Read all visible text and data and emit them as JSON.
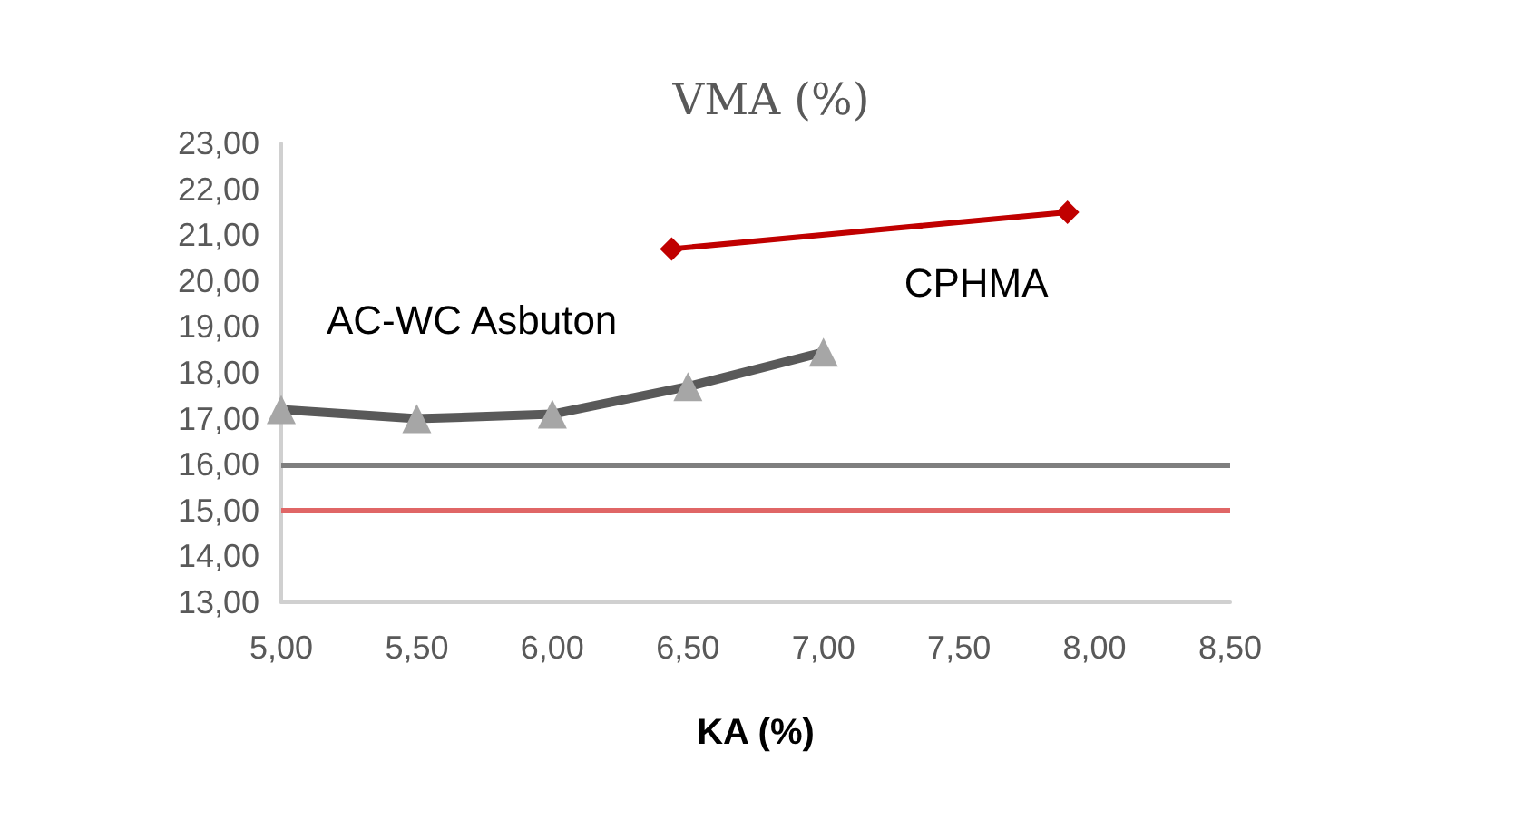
{
  "chart_data": {
    "type": "line",
    "title": "VMA (%)",
    "xlabel": "KA (%)",
    "series": [
      {
        "name": "AC-WC Asbuton",
        "color": "#595959",
        "marker": "triangle",
        "x": [
          5.0,
          5.5,
          6.0,
          6.5,
          7.0
        ],
        "values": [
          17.2,
          17.0,
          17.1,
          17.7,
          18.45
        ]
      },
      {
        "name": "CPHMA",
        "color": "#c00000",
        "marker": "diamond",
        "x": [
          6.44,
          7.9
        ],
        "values": [
          20.7,
          21.5
        ]
      }
    ],
    "xlim": [
      5,
      8.5
    ],
    "xticks": [
      {
        "value": 5,
        "label": "5,00"
      },
      {
        "value": 5.5,
        "label": "5,50"
      },
      {
        "value": 6,
        "label": "6,00"
      },
      {
        "value": 6.5,
        "label": "6,50"
      },
      {
        "value": 7,
        "label": "7,00"
      },
      {
        "value": 7.5,
        "label": "7,50"
      },
      {
        "value": 8,
        "label": "8,00"
      },
      {
        "value": 8.5,
        "label": "8,50"
      }
    ],
    "ylim": [
      13,
      23
    ],
    "yticks": [
      {
        "value": 13,
        "label": "13,00"
      },
      {
        "value": 14,
        "label": "14,00"
      },
      {
        "value": 15,
        "label": "15,00"
      },
      {
        "value": 16,
        "label": "16,00"
      },
      {
        "value": 17,
        "label": "17,00"
      },
      {
        "value": 18,
        "label": "18,00"
      },
      {
        "value": 19,
        "label": "19,00"
      },
      {
        "value": 20,
        "label": "20,00"
      },
      {
        "value": 21,
        "label": "21,00"
      },
      {
        "value": 22,
        "label": "22,00"
      },
      {
        "value": 23,
        "label": "23,00"
      }
    ],
    "ref_lines": [
      {
        "axis": "y",
        "value": 16,
        "color": "#7f7f7f"
      },
      {
        "axis": "y",
        "value": 15,
        "color": "#e06666"
      }
    ],
    "grid": false,
    "legend": false
  }
}
